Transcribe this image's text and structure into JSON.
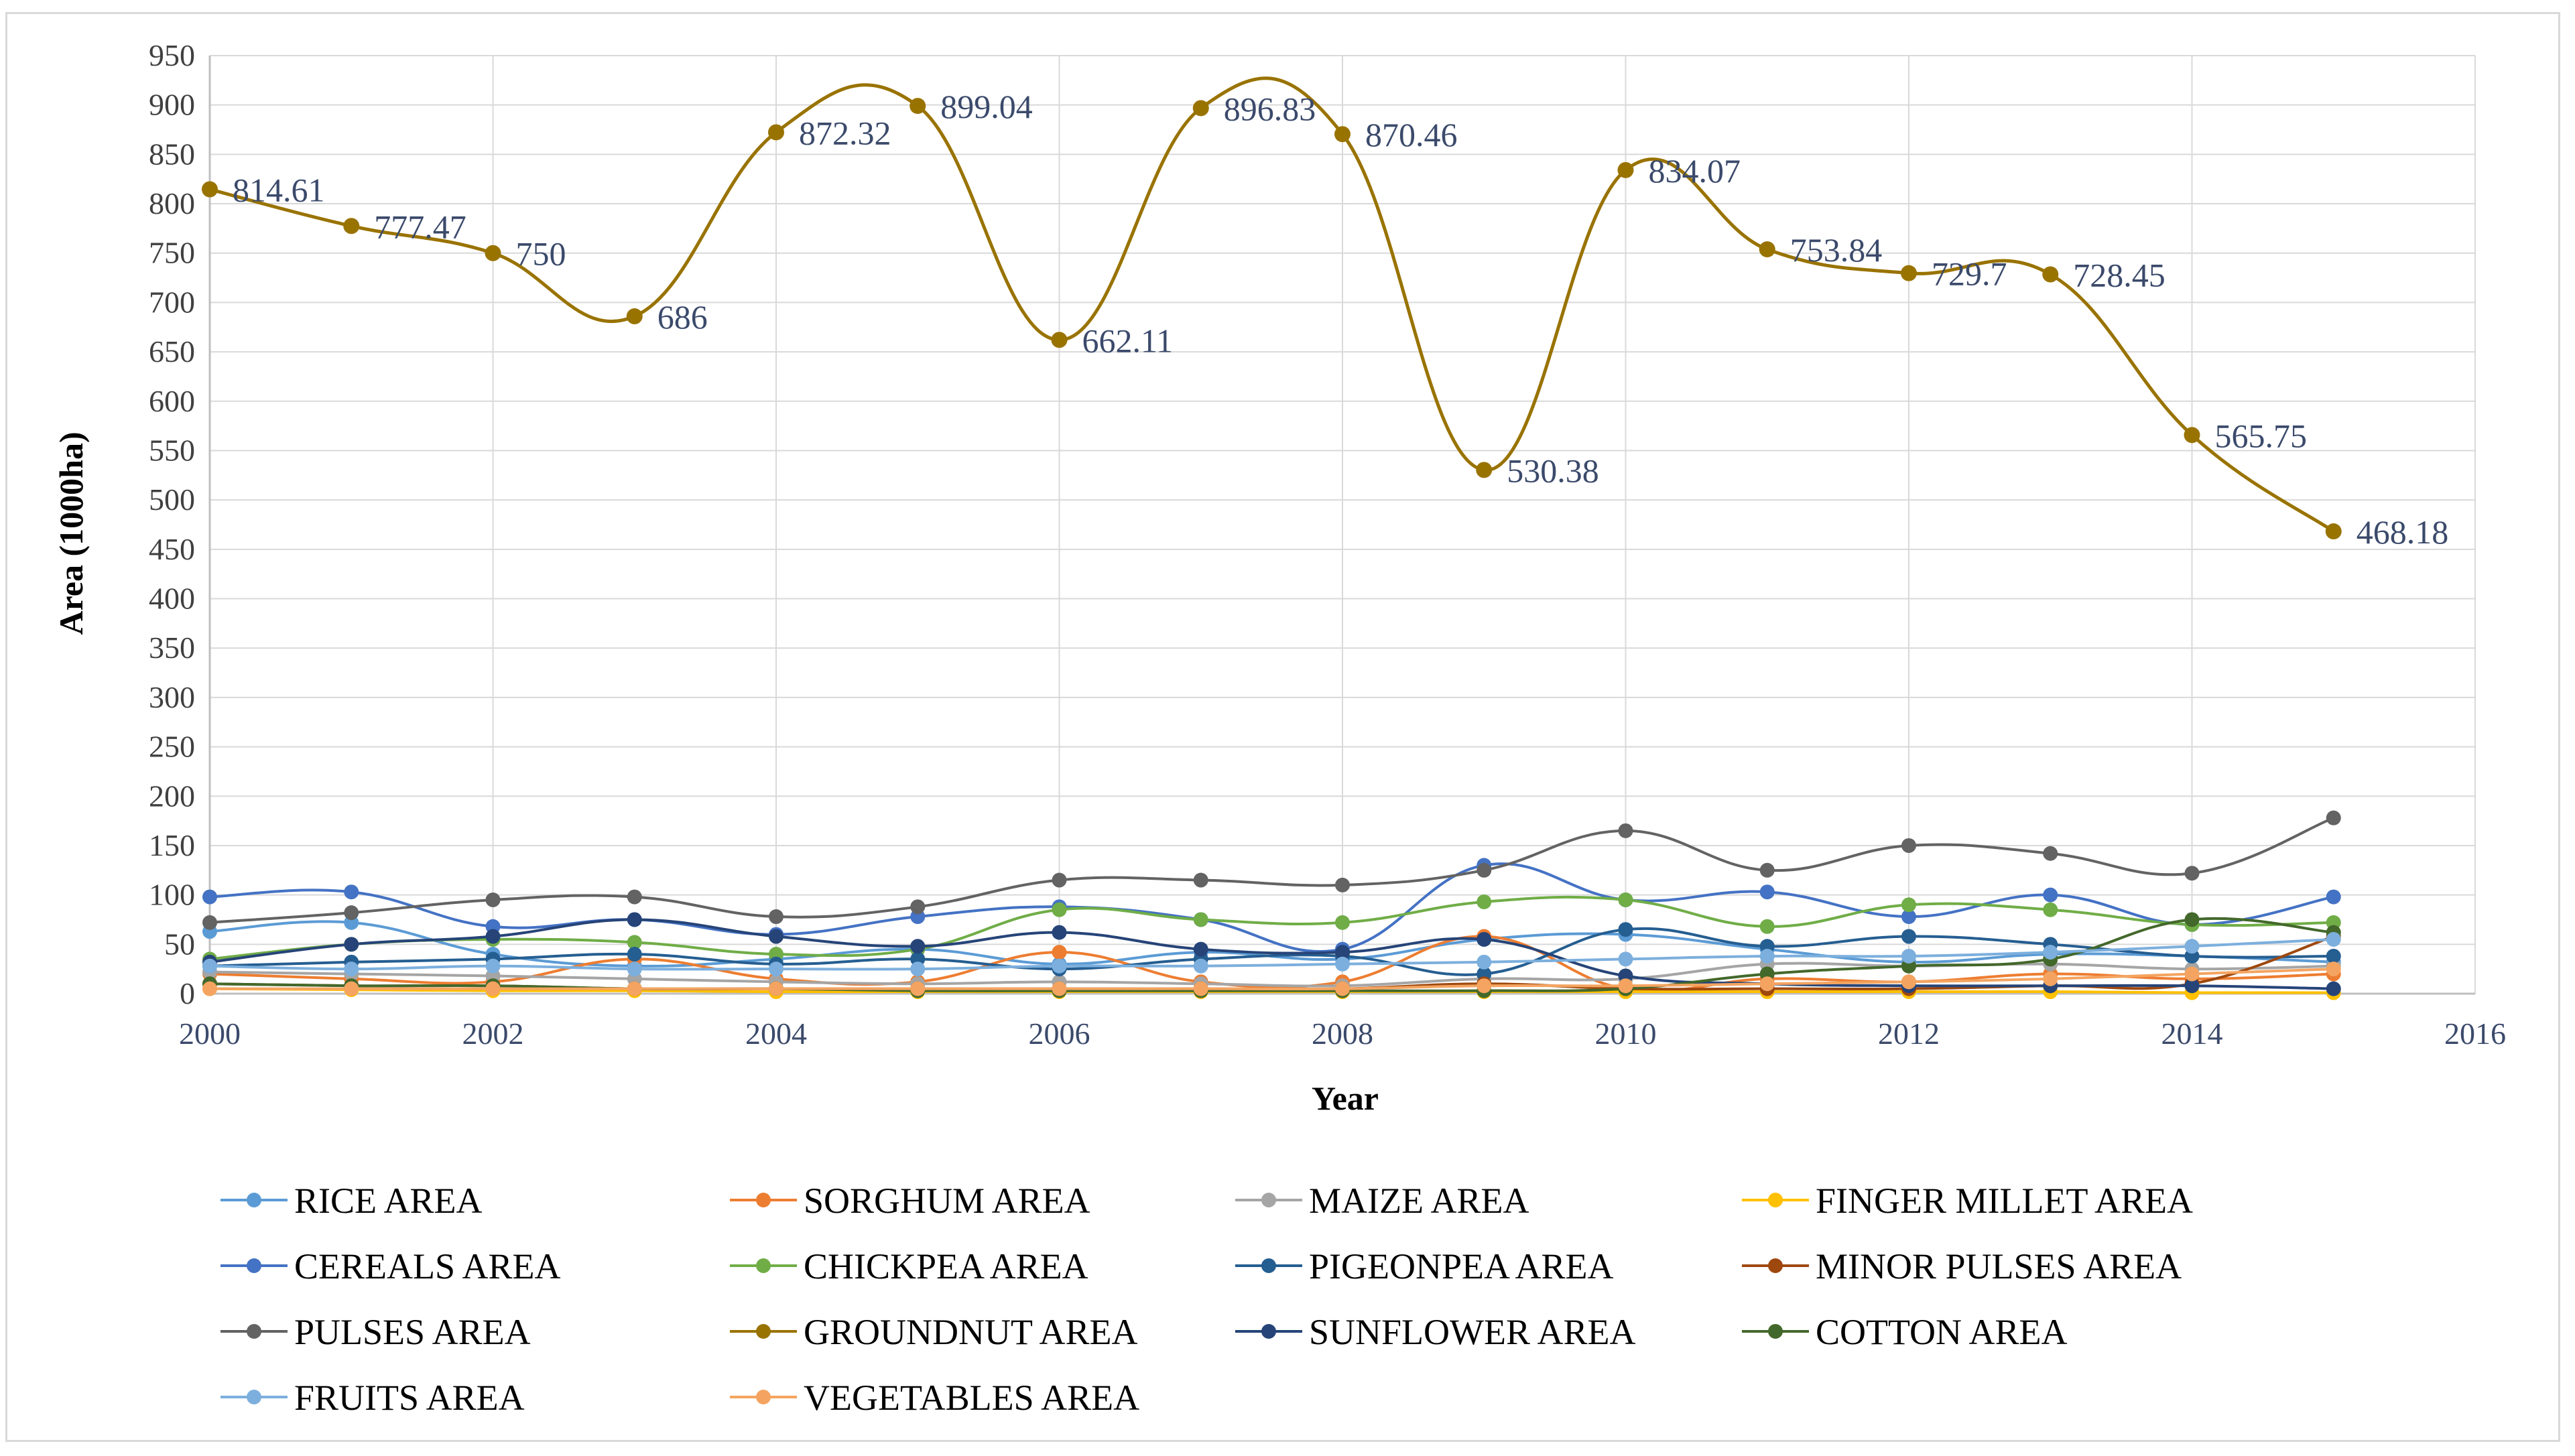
{
  "chart_data": {
    "type": "line",
    "title": "",
    "xlabel": "Year",
    "ylabel": "Area (1000ha)",
    "xlim": [
      2000,
      2016
    ],
    "ylim": [
      0,
      950
    ],
    "x_ticks": [
      2000,
      2002,
      2004,
      2006,
      2008,
      2010,
      2012,
      2014,
      2016
    ],
    "y_ticks": [
      0,
      50,
      100,
      150,
      200,
      250,
      300,
      350,
      400,
      450,
      500,
      550,
      600,
      650,
      700,
      750,
      800,
      850,
      900,
      950
    ],
    "grid": "both",
    "legend_position": "bottom",
    "x": [
      2000,
      2001,
      2002,
      2003,
      2004,
      2005,
      2006,
      2007,
      2008,
      2009,
      2010,
      2011,
      2012,
      2013,
      2014,
      2015
    ],
    "series": [
      {
        "name": "RICE AREA",
        "color": "#5b9bd5",
        "values": [
          63,
          72,
          40,
          28,
          35,
          45,
          30,
          42,
          35,
          55,
          60,
          45,
          32,
          40,
          38,
          32
        ]
      },
      {
        "name": "SORGHUM AREA",
        "color": "#ed7d31",
        "values": [
          20,
          15,
          12,
          35,
          15,
          12,
          42,
          12,
          12,
          58,
          5,
          15,
          12,
          20,
          15,
          20
        ]
      },
      {
        "name": "MAIZE AREA",
        "color": "#a5a5a5",
        "values": [
          22,
          20,
          18,
          15,
          12,
          10,
          12,
          10,
          8,
          15,
          15,
          30,
          28,
          30,
          25,
          28
        ]
      },
      {
        "name": "FINGER MILLET AREA",
        "color": "#ffc000",
        "values": [
          5,
          4,
          3,
          3,
          2,
          2,
          2,
          2,
          2,
          2,
          2,
          2,
          2,
          2,
          1,
          1
        ]
      },
      {
        "name": "CEREALS AREA",
        "color": "#4472c4",
        "values": [
          98,
          103,
          68,
          75,
          60,
          78,
          88,
          75,
          45,
          130,
          95,
          103,
          78,
          100,
          70,
          98
        ]
      },
      {
        "name": "CHICKPEA AREA",
        "color": "#70ad47",
        "values": [
          35,
          50,
          55,
          52,
          40,
          45,
          85,
          75,
          72,
          93,
          95,
          68,
          90,
          85,
          70,
          72
        ]
      },
      {
        "name": "PIGEONPEA AREA",
        "color": "#255e91",
        "values": [
          28,
          32,
          35,
          40,
          30,
          35,
          25,
          35,
          38,
          20,
          65,
          48,
          58,
          50,
          38,
          38
        ]
      },
      {
        "name": "MINOR PULSES AREA",
        "color": "#9e480e",
        "values": [
          10,
          8,
          8,
          5,
          5,
          5,
          5,
          5,
          5,
          10,
          5,
          5,
          5,
          8,
          10,
          58
        ]
      },
      {
        "name": "PULSES AREA",
        "color": "#636363",
        "values": [
          72,
          82,
          95,
          98,
          78,
          88,
          115,
          115,
          110,
          125,
          165,
          125,
          150,
          142,
          122,
          178
        ]
      },
      {
        "name": "GROUNDNUT AREA",
        "color": "#997300",
        "values": [
          814.61,
          777.47,
          750,
          686,
          872.32,
          899.04,
          662.11,
          896.83,
          870.46,
          530.38,
          834.07,
          753.84,
          729.7,
          728.45,
          565.75,
          468.18
        ]
      },
      {
        "name": "SUNFLOWER AREA",
        "color": "#264478",
        "values": [
          32,
          50,
          58,
          75,
          58,
          48,
          62,
          45,
          42,
          55,
          18,
          10,
          8,
          8,
          8,
          5
        ]
      },
      {
        "name": "COTTON AREA",
        "color": "#43682b",
        "values": [
          10,
          8,
          8,
          5,
          5,
          3,
          3,
          3,
          3,
          3,
          5,
          20,
          28,
          35,
          75,
          62
        ]
      },
      {
        "name": "FRUITS AREA",
        "color": "#7cafdd",
        "values": [
          28,
          25,
          28,
          25,
          25,
          25,
          28,
          28,
          30,
          32,
          35,
          38,
          38,
          42,
          48,
          55
        ]
      },
      {
        "name": "VEGETABLES AREA",
        "color": "#f4a460",
        "values": [
          5,
          5,
          5,
          5,
          5,
          5,
          5,
          5,
          5,
          8,
          8,
          10,
          12,
          15,
          20,
          25
        ]
      }
    ],
    "data_labels": {
      "series": "GROUNDNUT AREA",
      "labels": [
        "814.61",
        "777.47",
        "750",
        "686",
        "872.32",
        "899.04",
        "662.11",
        "896.83",
        "870.46",
        "530.38",
        "834.07",
        "753.84",
        "729.7",
        "728.45",
        "565.75",
        "468.18"
      ]
    }
  }
}
